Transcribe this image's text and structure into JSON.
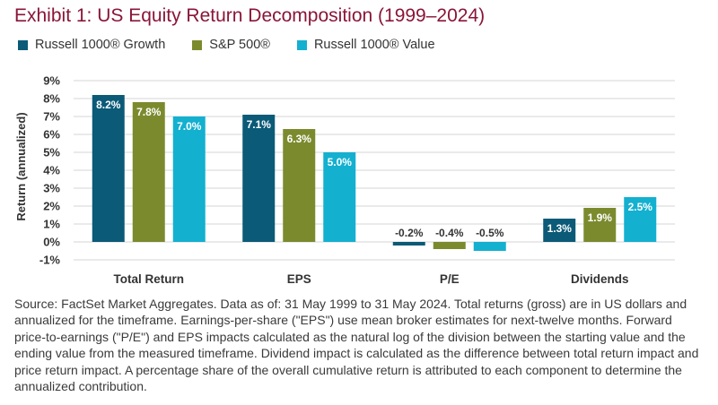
{
  "chart_data": {
    "type": "bar",
    "title": "Exhibit 1: US Equity Return Decomposition (1999–2024)",
    "ylabel": "Return (annualized)",
    "xlabel": "",
    "categories": [
      "Total Return",
      "EPS",
      "P/E",
      "Dividends"
    ],
    "series": [
      {
        "name": "Russell 1000® Growth",
        "color": "#0b5a77",
        "values": [
          8.2,
          7.1,
          -0.2,
          1.3
        ]
      },
      {
        "name": "S&P 500®",
        "color": "#7c8a2e",
        "values": [
          7.8,
          6.3,
          -0.4,
          1.9
        ]
      },
      {
        "name": "Russell 1000® Value",
        "color": "#13b0d0",
        "values": [
          7.0,
          5.0,
          -0.5,
          2.5
        ]
      }
    ],
    "data_labels": [
      [
        "8.2%",
        "7.8%",
        "7.0%"
      ],
      [
        "7.1%",
        "6.3%",
        "5.0%"
      ],
      [
        "-0.2%",
        "-0.4%",
        "-0.5%"
      ],
      [
        "1.3%",
        "1.9%",
        "2.5%"
      ]
    ],
    "ylim": [
      -1,
      9
    ],
    "yticks": [
      -1,
      0,
      1,
      2,
      3,
      4,
      5,
      6,
      7,
      8,
      9
    ],
    "ytick_labels": [
      "-1%",
      "0%",
      "1%",
      "2%",
      "3%",
      "4%",
      "5%",
      "6%",
      "7%",
      "8%",
      "9%"
    ],
    "grid": true,
    "legend_position": "top-left"
  },
  "source_note": "Source: FactSet Market Aggregates. Data as of: 31 May 1999 to 31 May 2024. Total returns (gross) are in US dollars and annualized for the timeframe. Earnings-per-share (\"EPS\") use mean broker estimates for next-twelve months. Forward price-to-earnings (\"P/E\") and EPS impacts calculated as the natural log of the division between the starting value and the ending value from the measured timeframe. Dividend impact is calculated as the difference between total return impact and price return impact. A percentage share of the overall cumulative return is attributed to each component to determine the annualized contribution."
}
